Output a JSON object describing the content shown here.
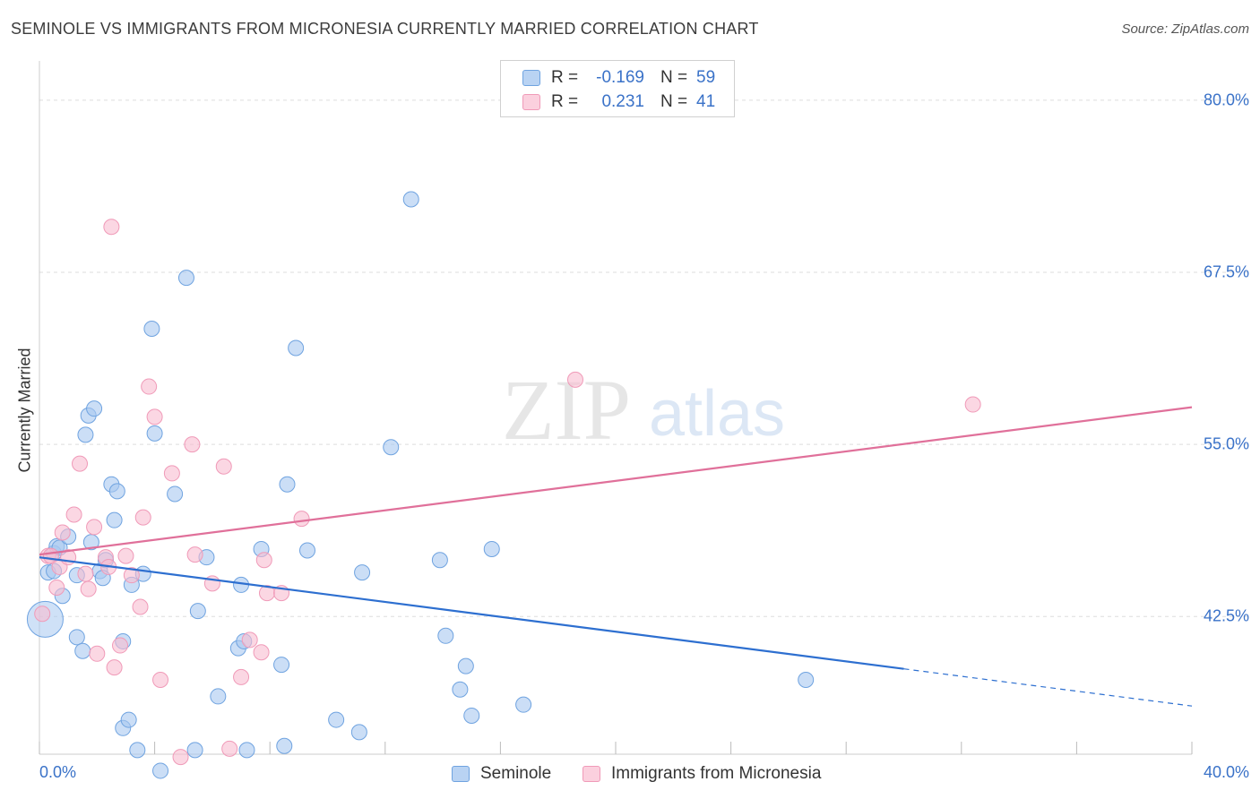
{
  "header": {
    "title": "SEMINOLE VS IMMIGRANTS FROM MICRONESIA CURRENTLY MARRIED CORRELATION CHART",
    "source": "Source: ZipAtlas.com"
  },
  "watermark": {
    "zip": "ZIP",
    "atlas": "atlas"
  },
  "legend": {
    "rows": [
      {
        "r_label": "R =",
        "r_value": "-0.169",
        "n_label": "N =",
        "n_value": "59",
        "color": "#a8c8f0"
      },
      {
        "r_label": "R =",
        "r_value": "0.231",
        "n_label": "N =",
        "n_value": "41",
        "color": "#f8bcd0"
      }
    ]
  },
  "bottom_legend": {
    "items": [
      {
        "label": "Seminole",
        "color": "#a8c8f0"
      },
      {
        "label": "Immigrants from Micronesia",
        "color": "#f8bcd0"
      }
    ]
  },
  "chart_data": {
    "type": "scatter",
    "title": "SEMINOLE VS IMMIGRANTS FROM MICRONESIA CURRENTLY MARRIED CORRELATION CHART",
    "xlabel": "",
    "ylabel": "Currently Married",
    "xlim": [
      0,
      40
    ],
    "ylim": [
      32.5,
      82.2
    ],
    "x_tick_labels": [
      "0.0%",
      "40.0%"
    ],
    "y_ticks": [
      42.5,
      55.0,
      67.5,
      80.0
    ],
    "y_tick_labels": [
      "42.5%",
      "55.0%",
      "67.5%",
      "80.0%"
    ],
    "grid": "horizontal dashed",
    "legend_position": "top-center",
    "series": [
      {
        "name": "Seminole",
        "color": "#6fa3e0",
        "fill": "#a8c8f0",
        "trend": {
          "x": [
            0,
            30,
            40
          ],
          "y": [
            46.8,
            38.5,
            36.0
          ],
          "dashed_after": 30,
          "color": "#2d6fd0"
        },
        "points": [
          [
            0.3,
            45.7
          ],
          [
            0.5,
            47.1
          ],
          [
            0.5,
            45.8
          ],
          [
            0.6,
            47.6
          ],
          [
            0.7,
            47.5
          ],
          [
            0.8,
            44.0
          ],
          [
            1.0,
            48.3
          ],
          [
            1.3,
            45.5
          ],
          [
            1.3,
            41.0
          ],
          [
            1.5,
            40.0
          ],
          [
            1.6,
            55.7
          ],
          [
            1.7,
            57.1
          ],
          [
            1.8,
            47.9
          ],
          [
            1.9,
            57.6
          ],
          [
            2.1,
            45.8
          ],
          [
            2.2,
            45.3
          ],
          [
            2.3,
            46.6
          ],
          [
            2.5,
            52.1
          ],
          [
            2.6,
            49.5
          ],
          [
            2.7,
            51.6
          ],
          [
            2.9,
            40.7
          ],
          [
            2.9,
            34.4
          ],
          [
            3.1,
            35.0
          ],
          [
            3.2,
            44.8
          ],
          [
            3.4,
            32.8
          ],
          [
            3.6,
            45.6
          ],
          [
            3.9,
            63.4
          ],
          [
            4.0,
            55.8
          ],
          [
            4.2,
            31.3
          ],
          [
            4.7,
            51.4
          ],
          [
            5.1,
            67.1
          ],
          [
            5.4,
            32.8
          ],
          [
            5.5,
            42.9
          ],
          [
            5.8,
            46.8
          ],
          [
            6.2,
            36.7
          ],
          [
            6.9,
            40.2
          ],
          [
            7.0,
            44.8
          ],
          [
            7.1,
            40.7
          ],
          [
            7.2,
            32.8
          ],
          [
            7.7,
            47.4
          ],
          [
            8.4,
            39.0
          ],
          [
            8.5,
            33.1
          ],
          [
            8.6,
            52.1
          ],
          [
            8.9,
            62.0
          ],
          [
            9.3,
            47.3
          ],
          [
            10.3,
            35.0
          ],
          [
            11.1,
            34.1
          ],
          [
            11.2,
            45.7
          ],
          [
            12.2,
            54.8
          ],
          [
            12.9,
            72.8
          ],
          [
            13.9,
            46.6
          ],
          [
            14.1,
            41.1
          ],
          [
            14.6,
            37.2
          ],
          [
            14.8,
            38.9
          ],
          [
            15.0,
            35.3
          ],
          [
            15.7,
            47.4
          ],
          [
            16.8,
            36.1
          ],
          [
            26.6,
            37.9
          ],
          [
            0.2,
            42.3
          ]
        ]
      },
      {
        "name": "Immigrants from Micronesia",
        "color": "#f09ab8",
        "fill": "#f8bcd0",
        "trend": {
          "x": [
            0,
            40
          ],
          "y": [
            47.0,
            57.7
          ],
          "color": "#e0709a"
        },
        "points": [
          [
            0.1,
            42.7
          ],
          [
            0.3,
            46.9
          ],
          [
            0.4,
            46.9
          ],
          [
            0.6,
            44.6
          ],
          [
            0.7,
            46.1
          ],
          [
            0.8,
            48.6
          ],
          [
            1.0,
            46.8
          ],
          [
            1.2,
            49.9
          ],
          [
            1.4,
            53.6
          ],
          [
            1.6,
            45.6
          ],
          [
            1.7,
            44.5
          ],
          [
            1.9,
            49.0
          ],
          [
            2.0,
            39.8
          ],
          [
            2.3,
            46.8
          ],
          [
            2.4,
            46.1
          ],
          [
            2.5,
            70.8
          ],
          [
            2.6,
            38.8
          ],
          [
            2.8,
            40.4
          ],
          [
            3.0,
            46.9
          ],
          [
            3.2,
            45.5
          ],
          [
            3.5,
            43.2
          ],
          [
            3.6,
            49.7
          ],
          [
            3.8,
            59.2
          ],
          [
            4.0,
            57.0
          ],
          [
            4.2,
            37.9
          ],
          [
            4.6,
            52.9
          ],
          [
            4.9,
            32.3
          ],
          [
            5.3,
            55.0
          ],
          [
            5.4,
            47.0
          ],
          [
            6.0,
            44.9
          ],
          [
            6.4,
            53.4
          ],
          [
            6.6,
            32.9
          ],
          [
            7.0,
            38.1
          ],
          [
            7.3,
            40.8
          ],
          [
            7.7,
            39.9
          ],
          [
            7.8,
            46.6
          ],
          [
            7.9,
            44.2
          ],
          [
            8.4,
            44.2
          ],
          [
            9.1,
            49.6
          ],
          [
            18.6,
            59.7
          ],
          [
            32.4,
            57.9
          ]
        ]
      }
    ]
  }
}
